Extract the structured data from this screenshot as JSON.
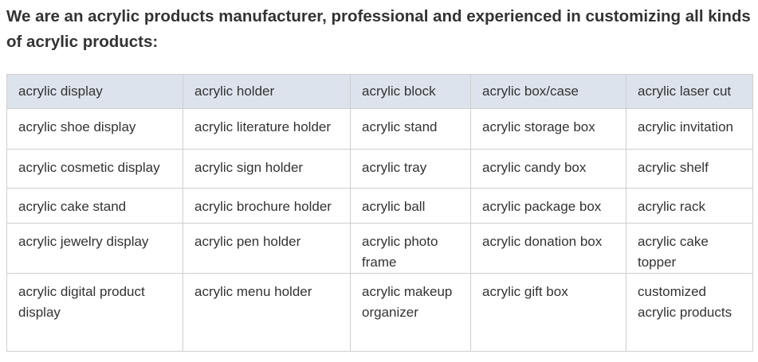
{
  "title": "We are an acrylic products manufacturer, professional and experienced in customizing all kinds of acrylic products:",
  "table": {
    "header": [
      "acrylic display",
      "acrylic holder",
      "acrylic block",
      "acrylic box/case",
      "acrylic laser cut"
    ],
    "rows": [
      [
        "acrylic shoe display",
        "acrylic literature holder",
        "acrylic stand",
        "acrylic storage box",
        "acrylic invitation"
      ],
      [
        "acrylic cosmetic display",
        "acrylic sign holder",
        "acrylic tray",
        "acrylic candy box",
        "acrylic shelf"
      ],
      [
        "acrylic cake stand",
        "acrylic brochure holder",
        "acrylic ball",
        "acrylic package box",
        "acrylic rack"
      ],
      [
        "acrylic jewelry display",
        "acrylic pen holder",
        "acrylic photo frame",
        "acrylic donation box",
        "acrylic cake topper"
      ],
      [
        "acrylic digital product display",
        "acrylic menu holder",
        "acrylic makeup organizer",
        "acrylic gift box",
        "customized acrylic products"
      ]
    ]
  }
}
